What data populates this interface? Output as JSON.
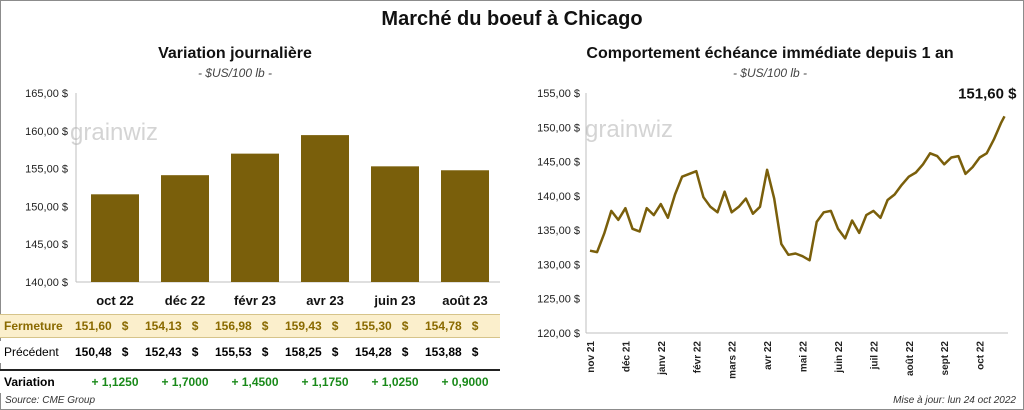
{
  "title": "Marché du boeuf à Chicago",
  "chart_data": [
    {
      "type": "bar",
      "title": "Variation journalière",
      "unit": "- $US/100 lb -",
      "categories": [
        "oct 22",
        "déc 22",
        "févr 23",
        "avr 23",
        "juin 23",
        "août 23"
      ],
      "values": [
        151.6,
        154.13,
        156.98,
        159.43,
        155.3,
        154.78
      ],
      "ylim": [
        140,
        165
      ],
      "yticks": [
        "140,00 $",
        "145,00 $",
        "150,00 $",
        "155,00 $",
        "160,00 $",
        "165,00 $"
      ],
      "bar_color": "#7a5f0b",
      "watermark": "grainwiz",
      "table": {
        "rows": [
          {
            "label": "Fermeture",
            "values": [
              "151,60",
              "154,13",
              "156,98",
              "159,43",
              "155,30",
              "154,78"
            ],
            "suffix": "$",
            "bg": "#fbefcc",
            "color": "#8a6a00"
          },
          {
            "label": "Précédent",
            "values": [
              "150,48",
              "152,43",
              "155,53",
              "158,25",
              "154,28",
              "153,88"
            ],
            "suffix": "$",
            "bg": "#ffffff",
            "color": "#000000"
          },
          {
            "label": "Variation",
            "values": [
              "+ 1,1250",
              "+ 1,7000",
              "+ 1,4500",
              "+ 1,1750",
              "+ 1,0250",
              "+ 0,9000"
            ],
            "suffix": "",
            "bg": "#ffffff",
            "color": "#1a8a1a"
          }
        ]
      }
    },
    {
      "type": "line",
      "title": "Comportement  échéance immédiate depuis 1 an",
      "unit": "- $US/100 lb -",
      "ylim": [
        120,
        155
      ],
      "yticks": [
        "120,00 $",
        "125,00 $",
        "130,00 $",
        "135,00 $",
        "140,00 $",
        "145,00 $",
        "150,00 $",
        "155,00 $"
      ],
      "xticks": [
        "nov 21",
        "déc 21",
        "janv 22",
        "févr 22",
        "mars 22",
        "avr 22",
        "mai 22",
        "juin 22",
        "juil 22",
        "août 22",
        "sept 22",
        "oct 22"
      ],
      "line_color": "#7a5f0b",
      "last_value_label": "151,60 $",
      "watermark": "grainwiz",
      "x": [
        0,
        0.2,
        0.4,
        0.6,
        0.8,
        1.0,
        1.2,
        1.4,
        1.6,
        1.8,
        2.0,
        2.2,
        2.4,
        2.6,
        2.8,
        3.0,
        3.2,
        3.4,
        3.6,
        3.8,
        4.0,
        4.2,
        4.4,
        4.6,
        4.8,
        5.0,
        5.2,
        5.4,
        5.6,
        5.8,
        6.0,
        6.2,
        6.4,
        6.6,
        6.8,
        7.0,
        7.2,
        7.4,
        7.6,
        7.8,
        8.0,
        8.2,
        8.4,
        8.6,
        8.8,
        9.0,
        9.2,
        9.4,
        9.6,
        9.8,
        10.0,
        10.2,
        10.4,
        10.6,
        10.8,
        11.0,
        11.2,
        11.4,
        11.5,
        11.6,
        11.7
      ],
      "values": [
        132,
        131.8,
        134.5,
        137.8,
        136.5,
        138.2,
        135.2,
        134.8,
        138.2,
        137.2,
        138.8,
        136.8,
        140.2,
        142.8,
        143.2,
        143.6,
        139.8,
        138.4,
        137.6,
        140.6,
        137.6,
        138.4,
        139.6,
        137.4,
        138.4,
        143.8,
        139.6,
        133.0,
        131.4,
        131.6,
        131.2,
        130.6,
        136.2,
        137.6,
        137.8,
        135.2,
        133.8,
        136.4,
        134.6,
        137.2,
        137.8,
        136.8,
        139.4,
        140.2,
        141.6,
        142.8,
        143.4,
        144.6,
        146.2,
        145.8,
        144.6,
        145.6,
        145.8,
        143.2,
        144.2,
        145.6,
        146.2,
        148.2,
        149.4,
        150.6,
        151.6
      ]
    }
  ],
  "footer": {
    "source": "Source: CME Group",
    "updated": "Mise à jour: lun 24 oct 2022"
  }
}
